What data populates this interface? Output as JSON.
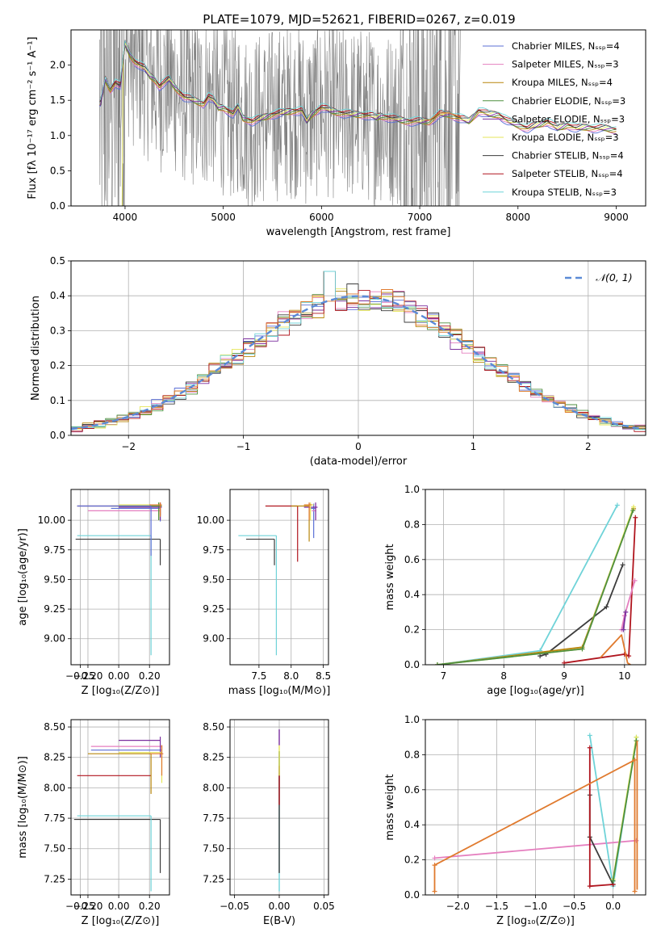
{
  "figure_title": "PLATE=1079, MJD=52621, FIBERID=0267, z=0.019",
  "colors": {
    "Chabrier MILES": "#5b6fd6",
    "Salpeter MILES": "#e57fbf",
    "Kroupa MILES": "#b8860b",
    "Chabrier ELODIE": "#4f8f3f",
    "Salpeter ELODIE": "#7b2f9e",
    "Kroupa ELODIE": "#e6e65a",
    "Chabrier STELIB": "#3c3c3c",
    "Salpeter STELIB": "#b0151e",
    "Kroupa STELIB": "#6fd3d8",
    "orange": "#e07a2e",
    "gauss": "#5b8ad6",
    "data": "#808080"
  },
  "chart_data": [
    {
      "id": "spectrum",
      "type": "line",
      "title": "PLATE=1079, MJD=52621, FIBERID=0267, z=0.019",
      "xlabel": "wavelength [Angstrom, rest frame]",
      "ylabel": "Flux [fλ 10⁻¹⁷ erg cm⁻² s⁻¹ A⁻¹]",
      "xlim": [
        3450,
        9300
      ],
      "ylim": [
        0,
        2.5
      ],
      "xticks": [
        4000,
        5000,
        6000,
        7000,
        8000,
        9000
      ],
      "yticks": [
        0.0,
        0.5,
        1.0,
        1.5,
        2.0
      ],
      "legend": [
        "Chabrier MILES, Nₛₛₚ=4",
        "Salpeter MILES, Nₛₛₚ=3",
        "Kroupa MILES, Nₛₛₚ=4",
        "Chabrier ELODIE, Nₛₛₚ=3",
        "Salpeter ELODIE, Nₛₛₚ=3",
        "Kroupa ELODIE, Nₛₛₚ=3",
        "Chabrier STELIB, Nₛₛₚ=4",
        "Salpeter STELIB, Nₛₛₚ=4",
        "Kroupa STELIB, Nₛₛₚ=3"
      ],
      "legend_placement": "top-right",
      "model_curve": {
        "x": [
          3750,
          3800,
          3850,
          3900,
          3950,
          4000,
          4050,
          4100,
          4150,
          4200,
          4250,
          4300,
          4350,
          4400,
          4450,
          4500,
          4600,
          4700,
          4800,
          4850,
          4900,
          4950,
          5000,
          5050,
          5100,
          5150,
          5200,
          5300,
          5400,
          5500,
          5600,
          5700,
          5800,
          5850,
          5900,
          6000,
          6100,
          6200,
          6300,
          6400,
          6500,
          6560,
          6600,
          6700,
          6800,
          6900,
          7000,
          7100,
          7200,
          7300,
          7400,
          7500,
          7600,
          7700,
          7800,
          7900,
          8000,
          8100,
          8200,
          8300,
          8400,
          8500,
          8600,
          8700,
          8800,
          8900,
          9000
        ],
        "y": [
          1.45,
          1.8,
          1.65,
          1.75,
          1.7,
          2.3,
          2.15,
          2.05,
          2.0,
          1.95,
          1.85,
          1.8,
          1.7,
          1.75,
          1.8,
          1.7,
          1.55,
          1.5,
          1.45,
          1.55,
          1.5,
          1.4,
          1.4,
          1.35,
          1.3,
          1.4,
          1.25,
          1.2,
          1.25,
          1.3,
          1.32,
          1.35,
          1.35,
          1.2,
          1.3,
          1.4,
          1.35,
          1.32,
          1.3,
          1.3,
          1.28,
          1.25,
          1.28,
          1.25,
          1.22,
          1.2,
          1.2,
          1.2,
          1.3,
          1.3,
          1.25,
          1.2,
          1.35,
          1.3,
          1.3,
          1.2,
          1.15,
          1.1,
          1.15,
          1.2,
          1.1,
          1.15,
          1.1,
          1.12,
          1.1,
          1.1,
          1.08
        ]
      }
    },
    {
      "id": "residuals",
      "type": "histogram",
      "xlabel": "(data-model)/error",
      "ylabel": "Normed distribution",
      "xlim": [
        -2.5,
        2.5
      ],
      "ylim": [
        0,
        0.5
      ],
      "xticks": [
        -2,
        -1,
        0,
        1,
        2
      ],
      "yticks": [
        0.0,
        0.1,
        0.2,
        0.3,
        0.4,
        0.5
      ],
      "grid": true,
      "legend": [
        "𝒩(0, 1)"
      ],
      "legend_placement": "top-right"
    },
    {
      "id": "age_vs_Z",
      "type": "errorbar",
      "xlabel": "Z [log₁₀(Z/Z⊙)]",
      "ylabel": "age  [log₁₀(age/yr)]",
      "xlim": [
        -0.31,
        0.33
      ],
      "ylim": [
        8.78,
        10.26
      ],
      "xticks": [
        -0.25,
        -0.2,
        0.0,
        0.2
      ],
      "xticklabels": [
        "−0.25",
        "−0.20",
        "0.00",
        "0.20"
      ],
      "yticks": [
        9.0,
        9.25,
        9.5,
        9.75,
        10.0
      ],
      "grid": true
    },
    {
      "id": "age_vs_mass",
      "type": "errorbar",
      "xlabel": "mass [log₁₀(M/M⊙)]",
      "ylabel": "",
      "xlim": [
        7.05,
        8.58
      ],
      "ylim": [
        8.78,
        10.26
      ],
      "xticks": [
        7.5,
        8.0,
        8.5
      ],
      "yticks": [
        9.0,
        9.25,
        9.5,
        9.75,
        10.0
      ],
      "grid": true
    },
    {
      "id": "mass_weight_vs_age",
      "type": "line",
      "xlabel": "age  [log₁₀(age/yr)]",
      "ylabel": "mass weight",
      "xlim": [
        6.7,
        10.35
      ],
      "ylim": [
        0,
        1.0
      ],
      "xticks": [
        7,
        8,
        9,
        10
      ],
      "yticks": [
        0.0,
        0.2,
        0.4,
        0.6,
        0.8,
        1.0
      ],
      "grid": true
    },
    {
      "id": "mass_vs_Z",
      "type": "errorbar",
      "xlabel": "Z [log₁₀(Z/Z⊙)]",
      "ylabel": "mass [log₁₀(M/M⊙)]",
      "xlim": [
        -0.31,
        0.33
      ],
      "ylim": [
        7.12,
        8.56
      ],
      "xticks": [
        -0.25,
        -0.2,
        0.0,
        0.2
      ],
      "xticklabels": [
        "−0.25",
        "−0.20",
        "0.00",
        "0.20"
      ],
      "yticks": [
        7.25,
        7.5,
        7.75,
        8.0,
        8.25,
        8.5
      ],
      "grid": true
    },
    {
      "id": "mass_vs_ebv",
      "type": "errorbar",
      "xlabel": "E(B-V)",
      "ylabel": "",
      "xlim": [
        -0.055,
        0.055
      ],
      "ylim": [
        7.12,
        8.56
      ],
      "xticks": [
        -0.05,
        0.0,
        0.05
      ],
      "xticklabels": [
        "−0.05",
        "0.00",
        "0.05"
      ],
      "yticks": [
        7.25,
        7.5,
        7.75,
        8.0,
        8.25,
        8.5
      ],
      "grid": true
    },
    {
      "id": "mass_weight_vs_Z",
      "type": "line",
      "xlabel": "Z [log₁₀(Z/Z⊙)]",
      "ylabel": "mass weight",
      "xlim": [
        -2.42,
        0.42
      ],
      "ylim": [
        0,
        1.0
      ],
      "xticks": [
        -2.0,
        -1.5,
        -1.0,
        -0.5,
        0.0
      ],
      "xticklabels": [
        "−2.0",
        "−1.5",
        "−1.0",
        "−0.5",
        "0.0"
      ],
      "yticks": [
        0.0,
        0.2,
        0.4,
        0.6,
        0.8,
        1.0
      ],
      "grid": true
    }
  ]
}
